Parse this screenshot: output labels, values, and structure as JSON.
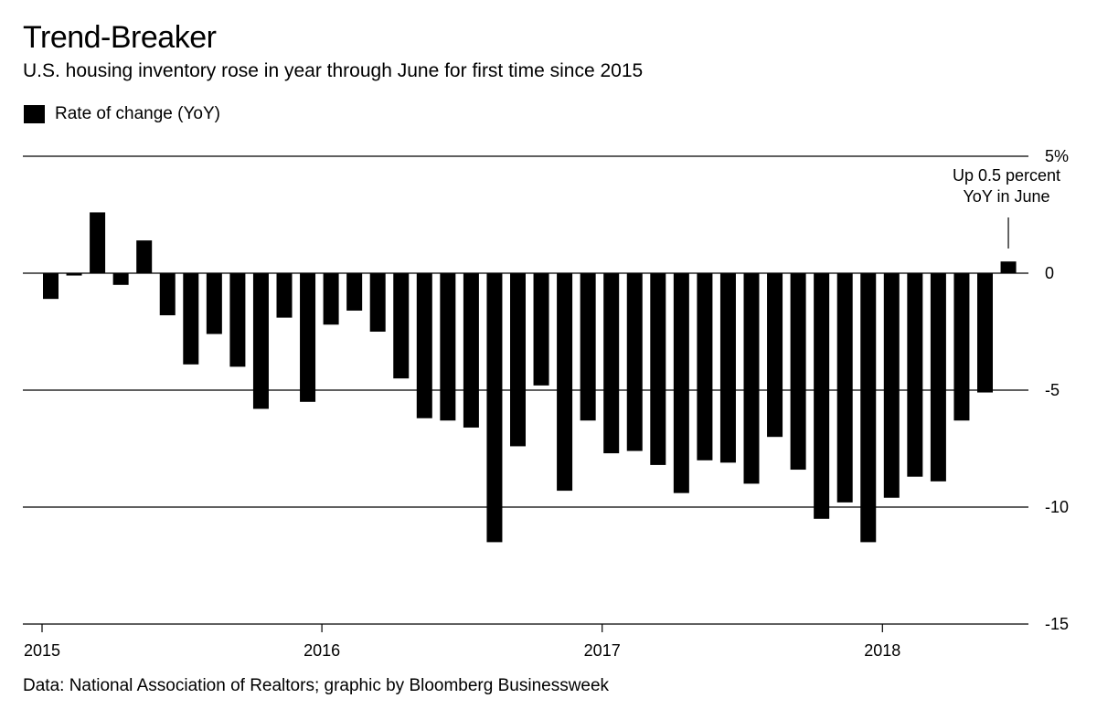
{
  "title": "Trend-Breaker",
  "subtitle": "U.S. housing inventory rose in year through June for first time since 2015",
  "legend_label": "Rate of change (YoY)",
  "source": "Data: National Association of Realtors; graphic by Bloomberg Businessweek",
  "annotation": {
    "line1": "Up 0.5 percent",
    "line2": "YoY in June"
  },
  "colors": {
    "bar": "#000000",
    "grid": "#000000",
    "background": "#ffffff"
  },
  "chart_data": {
    "type": "bar",
    "title": "Trend-Breaker",
    "subtitle": "U.S. housing inventory rose in year through June for first time since 2015",
    "series": [
      {
        "name": "Rate of change (YoY)",
        "dates": [
          "2015-01",
          "2015-02",
          "2015-03",
          "2015-04",
          "2015-05",
          "2015-06",
          "2015-07",
          "2015-08",
          "2015-09",
          "2015-10",
          "2015-11",
          "2015-12",
          "2016-01",
          "2016-02",
          "2016-03",
          "2016-04",
          "2016-05",
          "2016-06",
          "2016-07",
          "2016-08",
          "2016-09",
          "2016-10",
          "2016-11",
          "2016-12",
          "2017-01",
          "2017-02",
          "2017-03",
          "2017-04",
          "2017-05",
          "2017-06",
          "2017-07",
          "2017-08",
          "2017-09",
          "2017-10",
          "2017-11",
          "2017-12",
          "2018-01",
          "2018-02",
          "2018-03",
          "2018-04",
          "2018-05",
          "2018-06"
        ],
        "values": [
          -1.1,
          -0.1,
          2.6,
          -0.5,
          1.4,
          -1.8,
          -3.9,
          -2.6,
          -4.0,
          -5.8,
          -1.9,
          -5.5,
          -2.2,
          -1.6,
          -2.5,
          -4.5,
          -6.2,
          -6.3,
          -6.6,
          -11.5,
          -7.4,
          -4.8,
          -9.3,
          -6.3,
          -7.7,
          -7.6,
          -8.2,
          -9.4,
          -8.0,
          -8.1,
          -9.0,
          -7.0,
          -8.4,
          -10.5,
          -9.8,
          -11.5,
          -9.6,
          -8.7,
          -8.9,
          -6.3,
          -5.1,
          0.5
        ]
      }
    ],
    "x_ticks": [
      "2015",
      "2016",
      "2017",
      "2018"
    ],
    "y_ticks": [
      5,
      0,
      -5,
      -10,
      -15
    ],
    "y_tick_labels": [
      "5%",
      "0",
      "-5",
      "-10",
      "-15"
    ],
    "ylim": [
      -15,
      5
    ],
    "grid": "horizontal",
    "legend_position": "top-left"
  }
}
